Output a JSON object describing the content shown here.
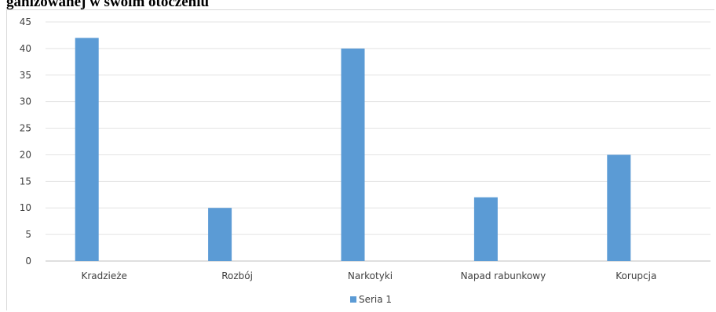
{
  "heading": "ganizowanej w swoim otoczeniu",
  "chart_data": {
    "type": "bar",
    "title": "",
    "xlabel": "",
    "ylabel": "",
    "categories": [
      "Kradzieże",
      "Rozbój",
      "Narkotyki",
      "Napad rabunkowy",
      "Korupcja"
    ],
    "series": [
      {
        "name": "Seria 1",
        "values": [
          42,
          10,
          40,
          12,
          20
        ],
        "color": "#5b9bd5"
      }
    ],
    "ylim": [
      0,
      45
    ],
    "yticks": [
      0,
      5,
      10,
      15,
      20,
      25,
      30,
      35,
      40,
      45
    ],
    "grid": true,
    "legend": "bottom"
  }
}
